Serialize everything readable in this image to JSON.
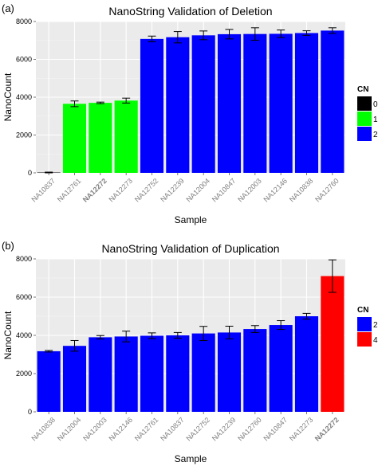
{
  "chart_data": [
    {
      "type": "bar",
      "panel_label": "(a)",
      "title": "NanoString Validation of Deletion",
      "xlabel": "Sample",
      "ylabel": "NanoCount",
      "ylim": [
        0,
        8000
      ],
      "yticks": [
        0,
        2000,
        4000,
        6000,
        8000
      ],
      "grid": true,
      "legend": {
        "title": "CN",
        "position": "right",
        "entries": [
          {
            "label": "0",
            "color": "#000000"
          },
          {
            "label": "1",
            "color": "#00ff00"
          },
          {
            "label": "2",
            "color": "#0000ff"
          }
        ]
      },
      "categories": [
        "NA10837",
        "NA12761",
        "NA12272",
        "NA12273",
        "NA12752",
        "NA12239",
        "NA12004",
        "NA10847",
        "NA12003",
        "NA12146",
        "NA10838",
        "NA12760"
      ],
      "bold_categories": [
        "NA12272"
      ],
      "values": [
        20,
        3650,
        3700,
        3820,
        7080,
        7170,
        7270,
        7330,
        7340,
        7350,
        7390,
        7520
      ],
      "errors": [
        20,
        150,
        40,
        130,
        150,
        300,
        230,
        250,
        330,
        200,
        120,
        150
      ],
      "cn": [
        "0",
        "1",
        "1",
        "1",
        "2",
        "2",
        "2",
        "2",
        "2",
        "2",
        "2",
        "2"
      ]
    },
    {
      "type": "bar",
      "panel_label": "(b)",
      "title": "NanoString Validation of Duplication",
      "xlabel": "Sample",
      "ylabel": "NanoCount",
      "ylim": [
        0,
        8000
      ],
      "yticks": [
        0,
        2000,
        4000,
        6000,
        8000
      ],
      "grid": true,
      "legend": {
        "title": "CN",
        "position": "right",
        "entries": [
          {
            "label": "2",
            "color": "#0000ff"
          },
          {
            "label": "4",
            "color": "#ff0000"
          }
        ]
      },
      "categories": [
        "NA10838",
        "NA12004",
        "NA12003",
        "NA12146",
        "NA12761",
        "NA10837",
        "NA12752",
        "NA12239",
        "NA12760",
        "NA10847",
        "NA12273",
        "NA12272"
      ],
      "bold_categories": [
        "NA12272"
      ],
      "values": [
        3170,
        3450,
        3900,
        3940,
        3980,
        4000,
        4100,
        4150,
        4330,
        4540,
        5000,
        7100
      ],
      "errors": [
        40,
        280,
        90,
        280,
        150,
        150,
        370,
        330,
        180,
        230,
        150,
        850
      ],
      "cn": [
        "2",
        "2",
        "2",
        "2",
        "2",
        "2",
        "2",
        "2",
        "2",
        "2",
        "2",
        "4"
      ]
    }
  ]
}
